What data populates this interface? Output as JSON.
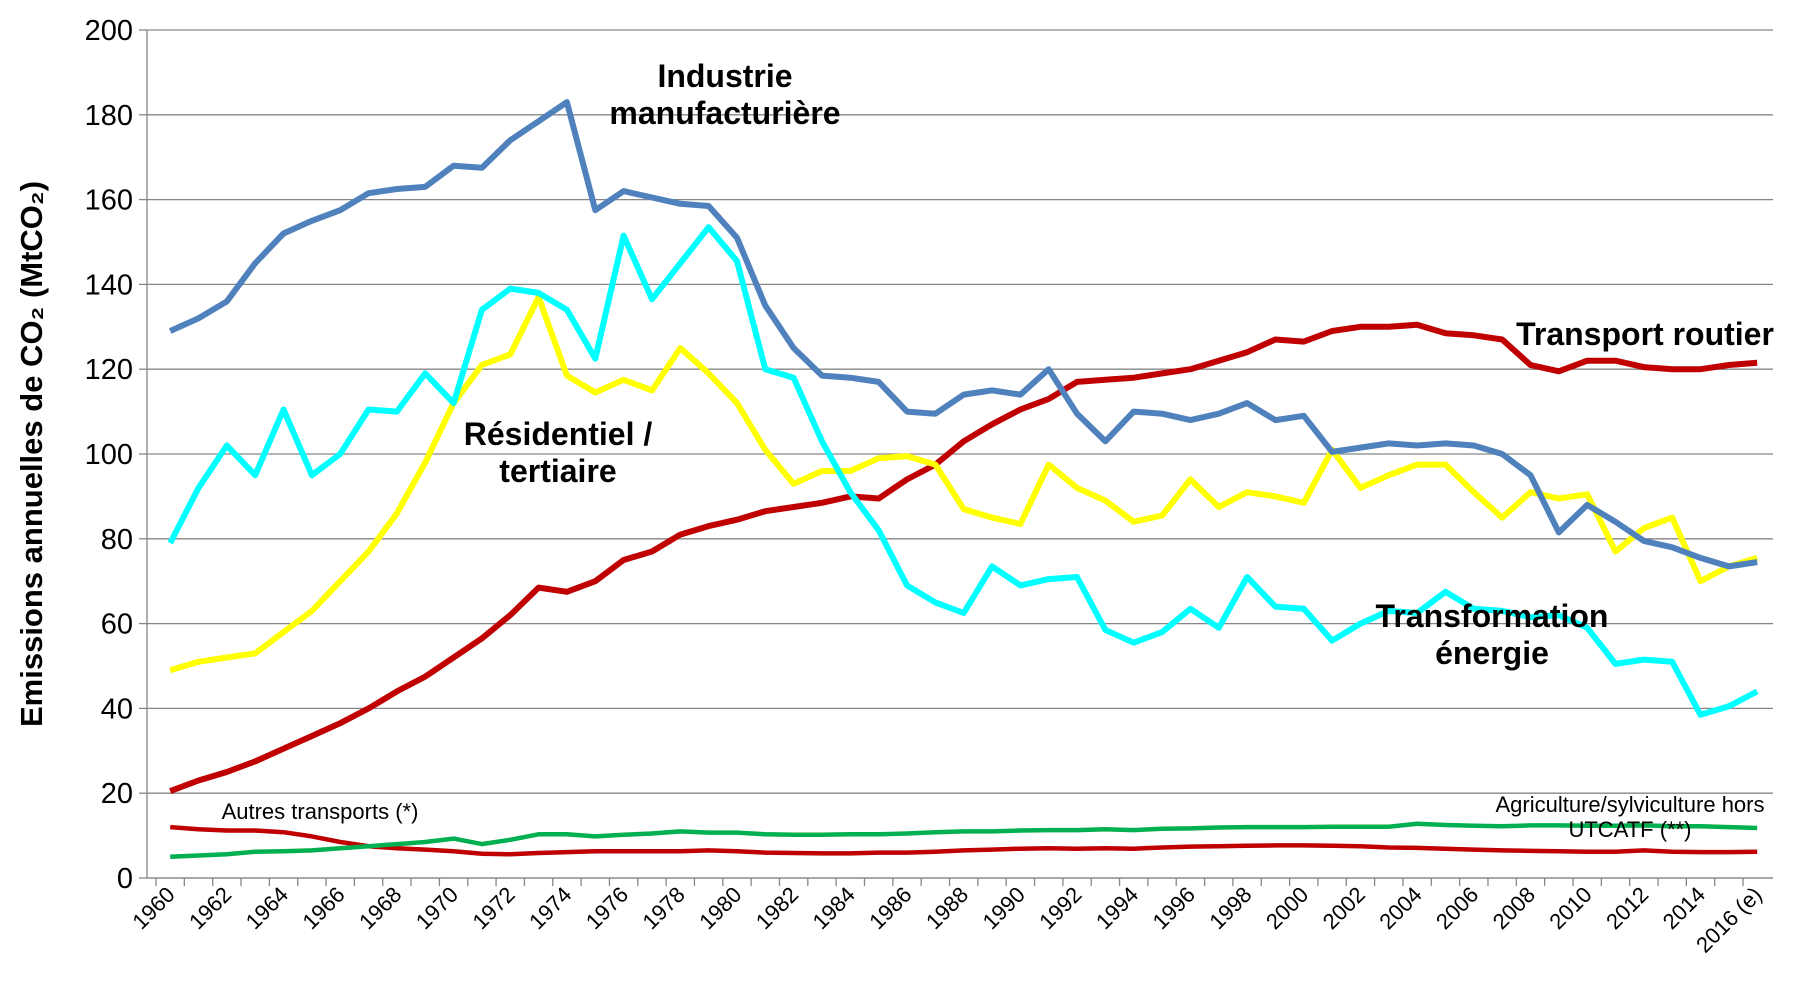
{
  "chart_data": {
    "type": "line",
    "y_label": "Emissions annuelles  de CO₂ (MtCO₂)",
    "categories": [
      "1960",
      null,
      "1962",
      null,
      "1964",
      null,
      "1966",
      null,
      "1968",
      null,
      "1970",
      null,
      "1972",
      null,
      "1974",
      null,
      "1976",
      null,
      "1978",
      null,
      "1980",
      null,
      "1982",
      null,
      "1984",
      null,
      "1986",
      null,
      "1988",
      null,
      "1990",
      null,
      "1992",
      null,
      "1994",
      null,
      "1996",
      null,
      "1998",
      null,
      "2000",
      null,
      "2002",
      null,
      "2004",
      null,
      "2006",
      null,
      "2008",
      null,
      "2010",
      null,
      "2012",
      null,
      "2014",
      null,
      "2016 (e)"
    ],
    "ylim": [
      0,
      200
    ],
    "yticks": [
      0,
      20,
      40,
      60,
      80,
      100,
      120,
      140,
      160,
      180,
      200
    ],
    "grid": true,
    "series": [
      {
        "name": "Industrie manufacturière",
        "color": "#4f81bd",
        "values": [
          129,
          132,
          136,
          145,
          152,
          155,
          157.5,
          161.5,
          162.5,
          163,
          168,
          167.5,
          174,
          178.5,
          183,
          157.5,
          162,
          160.5,
          159,
          158.5,
          151,
          135,
          125,
          118.5,
          118,
          117,
          110,
          109.5,
          114,
          115,
          114,
          120,
          109.5,
          103,
          110,
          109.5,
          108,
          109.5,
          112,
          108,
          109,
          100.5,
          101.5,
          102.5,
          102,
          102.5,
          102,
          100,
          95,
          81.5,
          88,
          84,
          79.5,
          78,
          75.5,
          73.5,
          74.5
        ]
      },
      {
        "name": "Résidentiel / tertiaire",
        "color": "#ffff00",
        "values": [
          49,
          51,
          52,
          53,
          58,
          63,
          70,
          77,
          86,
          98,
          112,
          121,
          123.5,
          137,
          118.5,
          114.5,
          117.5,
          115,
          125,
          119,
          112,
          101,
          93,
          96,
          96,
          99,
          99.5,
          97.5,
          87,
          85,
          83.5,
          97.5,
          92,
          89,
          84,
          85.5,
          94,
          87.5,
          91,
          90,
          88.5,
          101,
          92,
          95,
          97.5,
          97.5,
          91,
          85,
          91,
          89.5,
          90.5,
          77,
          82.5,
          85,
          70,
          73.5,
          75.5
        ]
      },
      {
        "name": "Transformation énergie",
        "color": "#00ffff",
        "values": [
          79,
          92,
          102,
          95,
          110.5,
          95,
          100,
          110.5,
          110,
          119,
          112,
          134,
          139,
          138,
          134,
          122.5,
          151.5,
          136.5,
          145,
          153.5,
          145.5,
          120,
          118,
          103,
          91,
          82,
          69,
          65,
          62.5,
          73.5,
          69,
          70.5,
          71,
          58.5,
          55.5,
          58,
          63.5,
          59,
          71,
          64,
          63.5,
          56,
          60,
          63,
          62.5,
          67.5,
          63.5,
          63,
          61.5,
          62,
          59,
          50.5,
          51.5,
          51,
          38.5,
          40.5,
          44
        ]
      },
      {
        "name": "Transport routier",
        "color": "#c00000",
        "values": [
          20.5,
          23,
          25,
          27.5,
          30.5,
          33.5,
          36.5,
          40,
          44,
          47.5,
          52,
          56.5,
          62,
          68.5,
          67.5,
          70,
          75,
          77,
          81,
          83,
          84.5,
          86.5,
          87.5,
          88.5,
          90,
          89.5,
          94,
          97.5,
          103,
          107,
          110.5,
          113,
          117,
          117.5,
          118,
          119,
          120,
          122,
          124,
          127,
          126.5,
          129,
          130,
          130,
          130.5,
          128.5,
          128,
          127,
          121,
          119.5,
          122,
          122,
          120.5,
          120,
          120,
          121,
          121.5
        ]
      },
      {
        "name": "Agriculture/sylviculture hors UTCATF (**)",
        "color": "#00b050",
        "values": [
          5,
          5.3,
          5.6,
          6.2,
          6.3,
          6.5,
          7,
          7.5,
          8,
          8.5,
          9.3,
          8,
          9,
          10.3,
          10.3,
          9.8,
          10.2,
          10.5,
          11,
          10.7,
          10.7,
          10.3,
          10.2,
          10.2,
          10.3,
          10.3,
          10.5,
          10.8,
          11,
          11,
          11.2,
          11.3,
          11.3,
          11.5,
          11.3,
          11.6,
          11.7,
          11.9,
          12,
          12,
          12,
          12.1,
          12.1,
          12.1,
          12.8,
          12.5,
          12.3,
          12.2,
          12.4,
          12.4,
          12.3,
          12.3,
          12.4,
          12.2,
          12.2,
          12,
          11.8
        ]
      },
      {
        "name": "Autres transports (*)",
        "color": "#c00000",
        "values": [
          12,
          11.5,
          11.2,
          11.2,
          10.8,
          9.8,
          8.5,
          7.5,
          7,
          6.7,
          6.3,
          5.7,
          5.6,
          5.9,
          6.1,
          6.3,
          6.3,
          6.3,
          6.3,
          6.5,
          6.3,
          6,
          5.9,
          5.8,
          5.8,
          6,
          6,
          6.2,
          6.5,
          6.7,
          6.9,
          7,
          6.9,
          7,
          6.9,
          7.2,
          7.4,
          7.5,
          7.6,
          7.7,
          7.7,
          7.6,
          7.5,
          7.2,
          7.1,
          6.9,
          6.7,
          6.5,
          6.4,
          6.3,
          6.2,
          6.2,
          6.5,
          6.2,
          6.1,
          6.1,
          6.2
        ]
      }
    ]
  }
}
